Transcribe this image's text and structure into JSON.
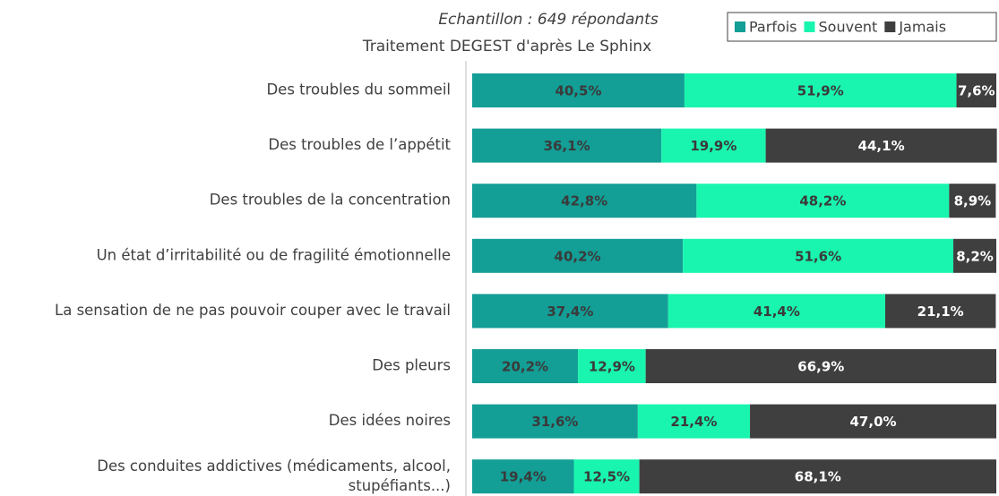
{
  "chart_data": {
    "type": "stacked-barh",
    "subtitle": [
      "Echantillon : 649 répondants",
      "Traitement DEGEST d'après Le Sphinx"
    ],
    "categories": [
      "Des troubles du sommeil",
      "Des troubles de l’appétit",
      "Des troubles de la concentration",
      "Un état d’irritabilité ou de fragilité émotionnelle",
      "La sensation de ne pas pouvoir couper avec le travail",
      "Des pleurs",
      "Des idées noires",
      "Des conduites addictives (médicaments, alcool,\nstupéfiants...)"
    ],
    "series": [
      {
        "name": "Parfois",
        "color": "#139e96",
        "label_color": "#3a3a3a",
        "values": [
          40.5,
          36.1,
          42.8,
          40.2,
          37.4,
          20.2,
          31.6,
          19.4
        ],
        "value_labels": [
          "40,5%",
          "36,1%",
          "42,8%",
          "40,2%",
          "37,4%",
          "20,2%",
          "31,6%",
          "19,4%"
        ]
      },
      {
        "name": "Souvent",
        "color": "#19f5ae",
        "label_color": "#3a3a3a",
        "values": [
          51.9,
          19.9,
          48.2,
          51.6,
          41.4,
          12.9,
          21.4,
          12.5
        ],
        "value_labels": [
          "51,9%",
          "19,9%",
          "48,2%",
          "51,6%",
          "41,4%",
          "12,9%",
          "21,4%",
          "12,5%"
        ]
      },
      {
        "name": "Jamais",
        "color": "#3f3f3f",
        "label_color": "#ffffff",
        "values": [
          7.6,
          44.1,
          8.9,
          8.2,
          21.1,
          66.9,
          47.0,
          68.1
        ],
        "value_labels": [
          "7,6%",
          "44,1%",
          "8,9%",
          "8,2%",
          "21,1%",
          "66,9%",
          "47,0%",
          "68,1%"
        ]
      }
    ],
    "xlim": [
      0,
      100
    ],
    "legend": "top-right"
  }
}
